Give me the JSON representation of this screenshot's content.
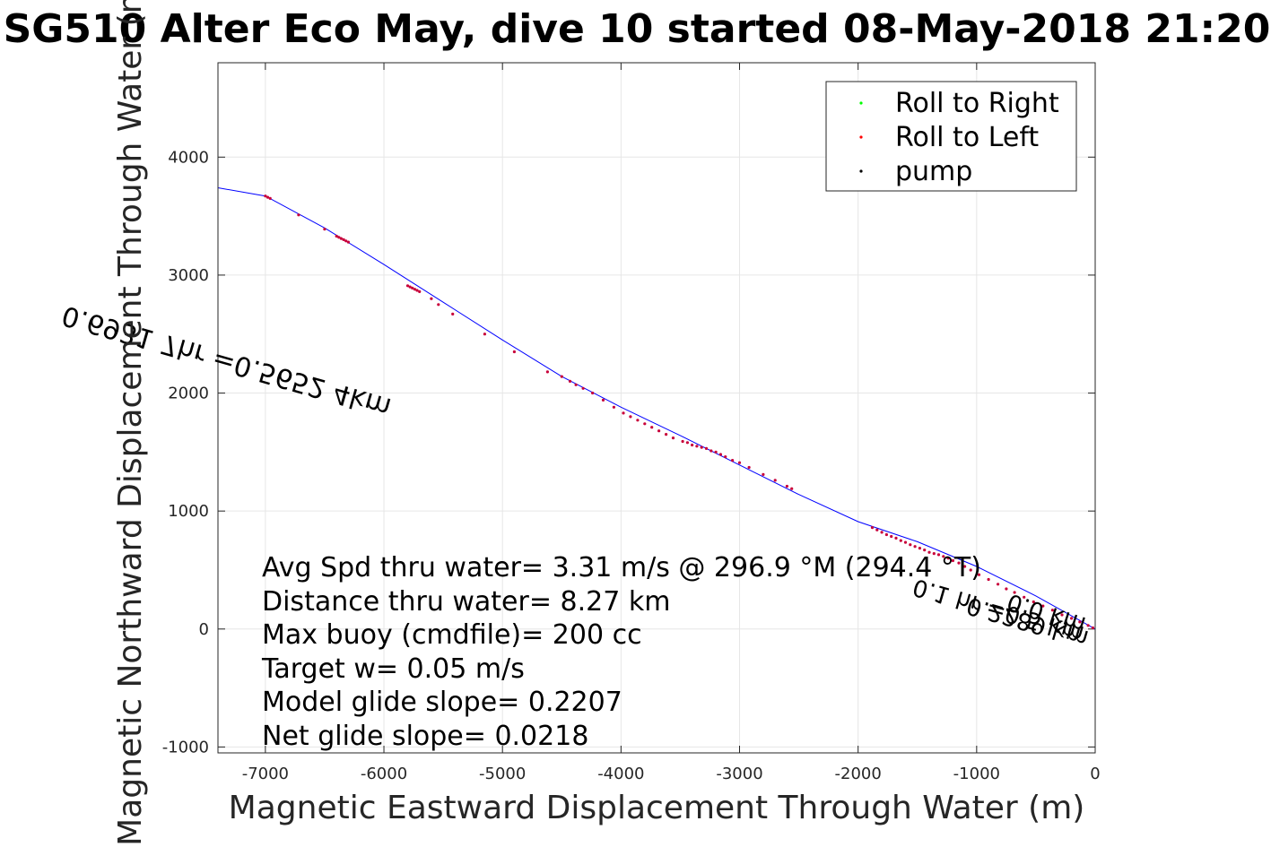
{
  "chart_data": {
    "type": "line",
    "title": "SG510 Alter Eco May, dive 10 started 08-May-2018 21:20",
    "xlabel": "Magnetic Eastward Displacement Through Water (m)",
    "ylabel": "Magnetic Northward Displacement Through Water (m)",
    "xlim": [
      -7400,
      0
    ],
    "ylim": [
      -1050,
      4800
    ],
    "xticks": [
      -7000,
      -6000,
      -5000,
      -4000,
      -3000,
      -2000,
      -1000,
      0
    ],
    "yticks": [
      -1000,
      0,
      1000,
      2000,
      3000,
      4000
    ],
    "grid": true,
    "legend": {
      "position": "top-right",
      "entries": [
        {
          "name": "Roll to Right",
          "color": "#00ff00"
        },
        {
          "name": "Roll to Left",
          "color": "#ff0000"
        },
        {
          "name": "pump",
          "color": "#000000"
        }
      ]
    },
    "track": {
      "color": "#0000ff",
      "x": [
        0,
        -500,
        -1000,
        -1500,
        -2000,
        -2500,
        -3000,
        -3500,
        -4000,
        -4500,
        -5000,
        -5500,
        -6000,
        -6500,
        -7000,
        -7400
      ],
      "y": [
        0,
        280,
        530,
        740,
        910,
        1140,
        1390,
        1640,
        1880,
        2140,
        2450,
        2770,
        3090,
        3400,
        3670,
        3740
      ]
    },
    "roll_left_x": [
      -7000,
      -6980,
      -6960,
      -6720,
      -6500,
      -6400,
      -6380,
      -6360,
      -6340,
      -6320,
      -6300,
      -5800,
      -5780,
      -5760,
      -5740,
      -5720,
      -5700,
      -5600,
      -5540,
      -5420,
      -5150,
      -4900,
      -4620,
      -4500,
      -4430,
      -4380,
      -4320,
      -4240,
      -4150,
      -4060,
      -3980,
      -3920,
      -3860,
      -3800,
      -3740,
      -3680,
      -3620,
      -3560,
      -3480,
      -3440,
      -3400,
      -3360,
      -3320,
      -3280,
      -3240,
      -3200,
      -3160,
      -3120,
      -3060,
      -3000,
      -2920,
      -2800,
      -2700,
      -2600,
      -2560,
      -1880,
      -1840,
      -1800,
      -1760,
      -1720,
      -1680,
      -1640,
      -1600,
      -1560,
      -1520,
      -1480,
      -1440,
      -1400,
      -1360,
      -1320,
      -1280,
      -1240,
      -1200,
      -1150,
      -1100,
      -1050,
      -980,
      -900,
      -820,
      -750,
      -680,
      -600,
      -520,
      -440,
      -360,
      -280,
      -200,
      -130,
      -60,
      -20
    ],
    "roll_left_y": [
      3670,
      3660,
      3650,
      3510,
      3390,
      3330,
      3320,
      3310,
      3300,
      3290,
      3280,
      2910,
      2900,
      2890,
      2880,
      2870,
      2860,
      2800,
      2750,
      2670,
      2500,
      2350,
      2180,
      2140,
      2100,
      2070,
      2040,
      2000,
      1940,
      1880,
      1830,
      1800,
      1770,
      1740,
      1710,
      1680,
      1650,
      1620,
      1590,
      1580,
      1560,
      1550,
      1540,
      1530,
      1510,
      1500,
      1480,
      1460,
      1430,
      1410,
      1370,
      1310,
      1260,
      1210,
      1190,
      860,
      840,
      820,
      800,
      785,
      770,
      750,
      735,
      715,
      700,
      685,
      670,
      650,
      640,
      630,
      615,
      600,
      580,
      560,
      530,
      500,
      460,
      420,
      380,
      340,
      310,
      270,
      230,
      195,
      160,
      120,
      90,
      60,
      30,
      10
    ]
  },
  "annotations": [
    "Avg Spd thru water=  3.31 m/s @ 296.9 °M (294.4 °T)",
    "Distance thru water=  8.27 km",
    "Max buoy (cmdfile)= 200 cc",
    "Target w= 0.05 m/s",
    "Model glide slope= 0.2207",
    "Net glide slope= 0.0218"
  ],
  "rotated_labels": [
    "0.6931 7hr =0.5652 4km",
    "0.1 hr =0.5 km",
    "0.2289 km",
    "0.0 km"
  ]
}
